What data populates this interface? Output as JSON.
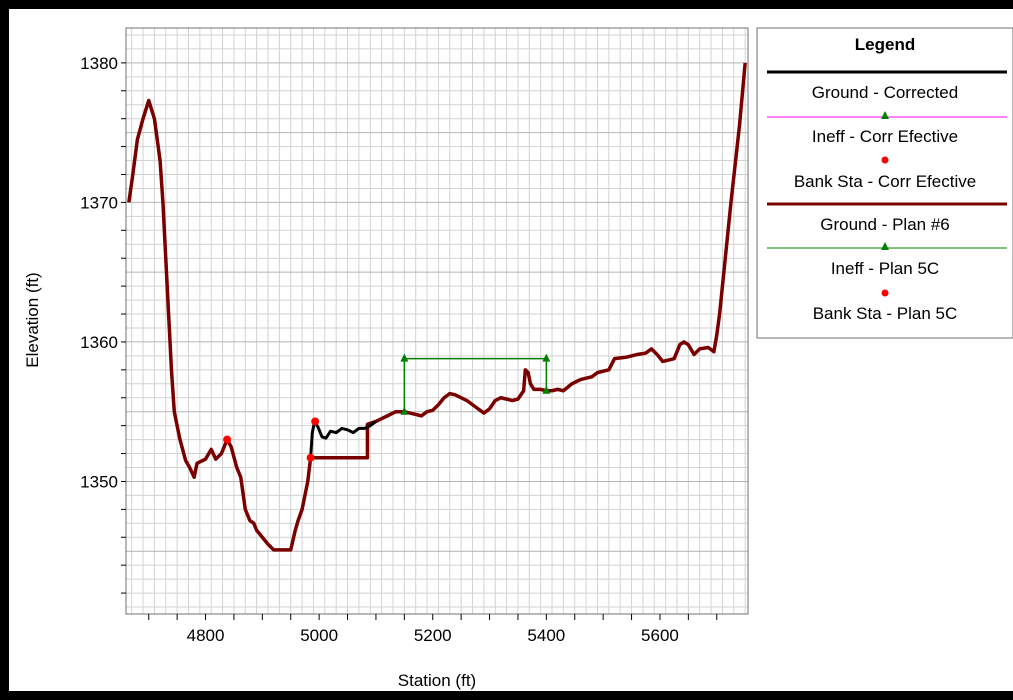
{
  "chart_data": {
    "type": "line",
    "xlabel": "Station (ft)",
    "ylabel": "Elevation (ft)",
    "xlim": [
      4660,
      5755
    ],
    "ylim": [
      1340.5,
      1382.5
    ],
    "x_ticks": [
      4800,
      5000,
      5200,
      5400,
      5600
    ],
    "y_ticks": [
      1350,
      1360,
      1370,
      1380
    ],
    "grid": true,
    "legend_title": "Legend",
    "legend_position": "right",
    "series": [
      {
        "name": "Ground - Corrected",
        "kind": "line",
        "color": "#000000",
        "points": [
          [
            4985,
            1351.7
          ],
          [
            4988,
            1353.5
          ],
          [
            4992,
            1354.3
          ],
          [
            4998,
            1353.9
          ],
          [
            5005,
            1353.2
          ],
          [
            5012,
            1353.1
          ],
          [
            5020,
            1353.6
          ],
          [
            5030,
            1353.5
          ],
          [
            5040,
            1353.8
          ],
          [
            5050,
            1353.7
          ],
          [
            5060,
            1353.5
          ],
          [
            5070,
            1353.8
          ],
          [
            5080,
            1353.8
          ],
          [
            5090,
            1354.0
          ],
          [
            5100,
            1354.3
          ]
        ]
      },
      {
        "name": "Ineff - Corr Efective",
        "kind": "line-marker",
        "color": "#ff00ff",
        "marker_color": "#008000",
        "points": []
      },
      {
        "name": "Bank Sta - Corr Efective",
        "kind": "marker",
        "color": "#ff0000",
        "points": [
          [
            4838,
            1353.0
          ],
          [
            4993,
            1354.3
          ]
        ]
      },
      {
        "name": "Ground - Plan #6",
        "kind": "line",
        "color": "#7a0000",
        "points": [
          [
            4665,
            1370.0
          ],
          [
            4672,
            1372.0
          ],
          [
            4680,
            1374.5
          ],
          [
            4690,
            1376.0
          ],
          [
            4700,
            1377.3
          ],
          [
            4710,
            1376.0
          ],
          [
            4720,
            1373.0
          ],
          [
            4725,
            1370.0
          ],
          [
            4730,
            1366.0
          ],
          [
            4735,
            1362.0
          ],
          [
            4740,
            1358.0
          ],
          [
            4745,
            1355.0
          ],
          [
            4755,
            1353.0
          ],
          [
            4765,
            1351.5
          ],
          [
            4772,
            1351.0
          ],
          [
            4780,
            1350.3
          ],
          [
            4785,
            1351.3
          ],
          [
            4800,
            1351.6
          ],
          [
            4810,
            1352.3
          ],
          [
            4818,
            1351.6
          ],
          [
            4828,
            1352.0
          ],
          [
            4838,
            1353.0
          ],
          [
            4845,
            1352.5
          ],
          [
            4855,
            1351.0
          ],
          [
            4862,
            1350.3
          ],
          [
            4870,
            1348.0
          ],
          [
            4878,
            1347.2
          ],
          [
            4885,
            1347.0
          ],
          [
            4890,
            1346.5
          ],
          [
            4900,
            1346.0
          ],
          [
            4910,
            1345.5
          ],
          [
            4920,
            1345.1
          ],
          [
            4950,
            1345.1
          ],
          [
            4958,
            1346.5
          ],
          [
            4963,
            1347.2
          ],
          [
            4970,
            1348.0
          ],
          [
            4980,
            1350.0
          ],
          [
            4985,
            1351.7
          ],
          [
            5085,
            1351.7
          ],
          [
            5085,
            1354.1
          ],
          [
            5100,
            1354.3
          ],
          [
            5120,
            1354.7
          ],
          [
            5135,
            1355.0
          ],
          [
            5150,
            1355.0
          ],
          [
            5170,
            1354.8
          ],
          [
            5180,
            1354.7
          ],
          [
            5190,
            1355.0
          ],
          [
            5200,
            1355.1
          ],
          [
            5210,
            1355.5
          ],
          [
            5220,
            1356.0
          ],
          [
            5230,
            1356.3
          ],
          [
            5240,
            1356.2
          ],
          [
            5260,
            1355.8
          ],
          [
            5280,
            1355.2
          ],
          [
            5290,
            1354.9
          ],
          [
            5300,
            1355.2
          ],
          [
            5310,
            1355.8
          ],
          [
            5320,
            1356.0
          ],
          [
            5330,
            1355.9
          ],
          [
            5340,
            1355.8
          ],
          [
            5350,
            1355.9
          ],
          [
            5360,
            1356.5
          ],
          [
            5363,
            1358.0
          ],
          [
            5368,
            1357.8
          ],
          [
            5372,
            1357.0
          ],
          [
            5378,
            1356.6
          ],
          [
            5390,
            1356.6
          ],
          [
            5400,
            1356.5
          ],
          [
            5410,
            1356.5
          ],
          [
            5420,
            1356.6
          ],
          [
            5430,
            1356.5
          ],
          [
            5445,
            1357.0
          ],
          [
            5460,
            1357.3
          ],
          [
            5470,
            1357.4
          ],
          [
            5480,
            1357.5
          ],
          [
            5490,
            1357.8
          ],
          [
            5500,
            1357.9
          ],
          [
            5510,
            1358.0
          ],
          [
            5520,
            1358.8
          ],
          [
            5540,
            1358.9
          ],
          [
            5560,
            1359.1
          ],
          [
            5575,
            1359.2
          ],
          [
            5585,
            1359.5
          ],
          [
            5595,
            1359.1
          ],
          [
            5605,
            1358.6
          ],
          [
            5615,
            1358.7
          ],
          [
            5625,
            1358.8
          ],
          [
            5635,
            1359.8
          ],
          [
            5642,
            1360.0
          ],
          [
            5650,
            1359.8
          ],
          [
            5660,
            1359.1
          ],
          [
            5670,
            1359.5
          ],
          [
            5685,
            1359.6
          ],
          [
            5695,
            1359.3
          ],
          [
            5700,
            1360.5
          ],
          [
            5705,
            1362.0
          ],
          [
            5715,
            1366.0
          ],
          [
            5725,
            1370.0
          ],
          [
            5740,
            1375.5
          ],
          [
            5750,
            1380.0
          ]
        ]
      },
      {
        "name": "Ineff - Plan 5C",
        "kind": "line-marker",
        "color": "#008000",
        "points": [
          [
            5150,
            1355.0
          ],
          [
            5150,
            1358.8
          ],
          [
            5400,
            1358.8
          ],
          [
            5400,
            1356.5
          ]
        ],
        "marker_points": [
          [
            5150,
            1358.8
          ],
          [
            5150,
            1355.0
          ],
          [
            5400,
            1358.8
          ],
          [
            5400,
            1356.5
          ]
        ]
      },
      {
        "name": "Bank Sta - Plan 5C",
        "kind": "marker",
        "color": "#ff0000",
        "points": [
          [
            4985,
            1351.7
          ]
        ]
      }
    ]
  }
}
